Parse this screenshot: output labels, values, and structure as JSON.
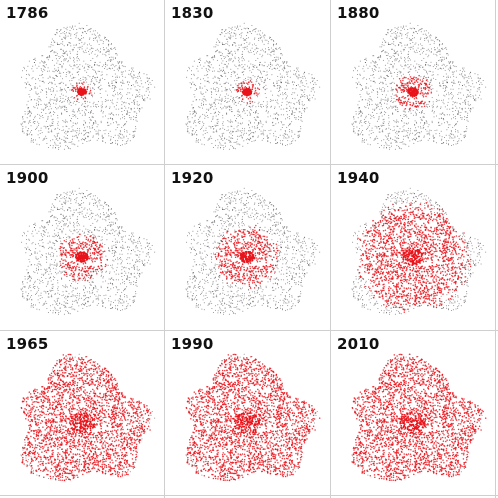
{
  "panels": [
    {
      "year": "1786",
      "urban": 0.025
    },
    {
      "year": "1830",
      "urban": 0.045
    },
    {
      "year": "1880",
      "urban": 0.14
    },
    {
      "year": "1900",
      "urban": 0.22
    },
    {
      "year": "1920",
      "urban": 0.32
    },
    {
      "year": "1940",
      "urban": 0.66
    },
    {
      "year": "1965",
      "urban": 0.9
    },
    {
      "year": "1990",
      "urban": 0.95
    },
    {
      "year": "2010",
      "urban": 0.98
    }
  ],
  "colors": {
    "urban": "#e8141b",
    "rural": "#1a1a1a",
    "grid": "#cfcfcf",
    "label": "#111111"
  }
}
